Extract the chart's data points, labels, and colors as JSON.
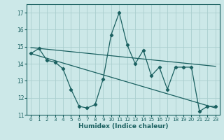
{
  "xlabel": "Humidex (Indice chaleur)",
  "xlim": [
    -0.5,
    23.5
  ],
  "ylim": [
    11,
    17.5
  ],
  "yticks": [
    11,
    12,
    13,
    14,
    15,
    16,
    17
  ],
  "xticks": [
    0,
    1,
    2,
    3,
    4,
    5,
    6,
    7,
    8,
    9,
    10,
    11,
    12,
    13,
    14,
    15,
    16,
    17,
    18,
    19,
    20,
    21,
    22,
    23
  ],
  "bg_color": "#cce8e8",
  "grid_color": "#aacece",
  "line_color": "#1a6060",
  "series1_x": [
    0,
    1,
    2,
    3,
    4,
    5,
    6,
    7,
    8,
    9,
    10,
    11,
    12,
    13,
    14,
    15,
    16,
    17,
    18,
    19,
    20,
    21,
    22,
    23
  ],
  "series1_y": [
    14.6,
    14.9,
    14.2,
    14.1,
    13.7,
    12.5,
    11.5,
    11.4,
    11.6,
    13.1,
    15.7,
    17.0,
    15.1,
    14.0,
    14.8,
    13.3,
    13.8,
    12.5,
    13.8,
    13.8,
    13.8,
    11.2,
    11.5,
    11.5
  ],
  "trend1_x": [
    0,
    23
  ],
  "trend1_y": [
    14.6,
    11.4
  ],
  "trend2_x": [
    0,
    23
  ],
  "trend2_y": [
    14.95,
    13.85
  ]
}
